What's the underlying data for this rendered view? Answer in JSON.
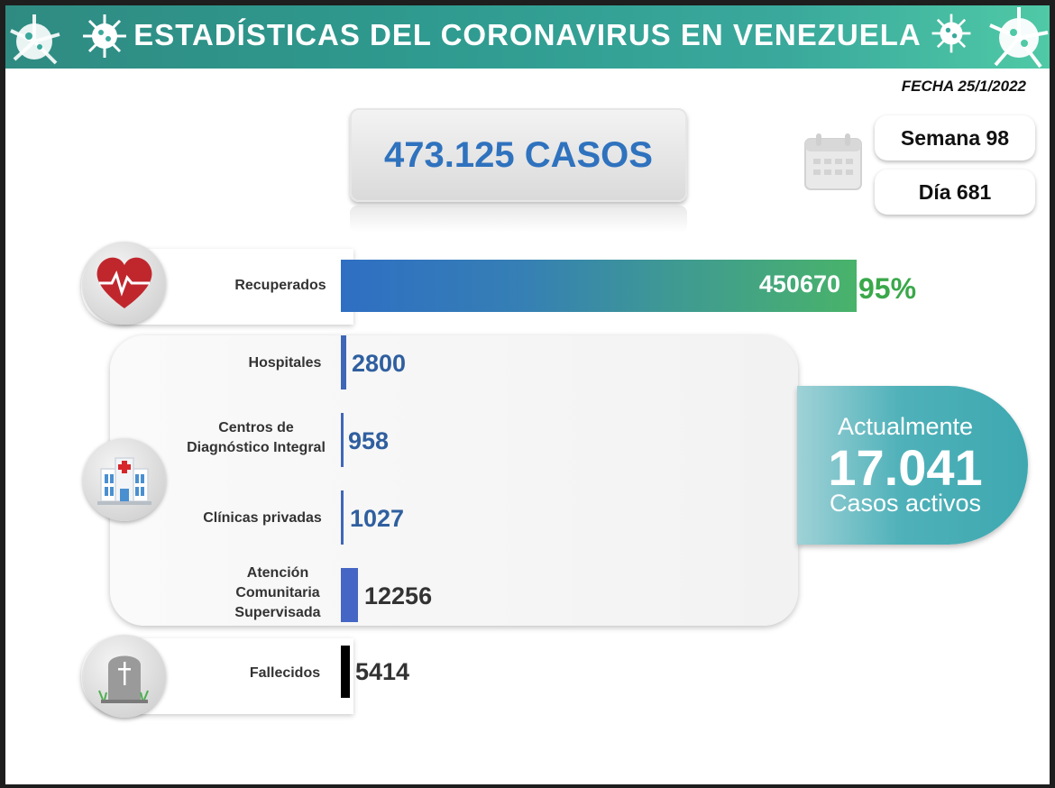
{
  "header": {
    "title": "ESTADÍSTICAS DEL CORONAVIRUS EN VENEZUELA",
    "date": "FECHA 25/1/2022"
  },
  "summary": {
    "total_cases": "473.125 CASOS",
    "week": "Semana 98",
    "day": "Día 681"
  },
  "recovered": {
    "label": "Recuperados",
    "value": "450670",
    "percent": "95%"
  },
  "active": {
    "line1": "Actualmente",
    "value": "17.041",
    "line3": "Casos activos"
  },
  "colors": {
    "banner": "#2f8b82",
    "recovered_start": "#2f6fc3",
    "recovered_end": "#49b36a",
    "percent": "#3aa84a",
    "active_box": "#4fb1b9",
    "value_blue": "#2f5f9f",
    "value_dark": "#333333"
  },
  "icons": {
    "recovered": "heart-pulse-icon",
    "hospital": "hospital-icon",
    "deaths": "tombstone-icon",
    "calendar": "calendar-icon"
  },
  "chart_data": {
    "type": "bar",
    "categories": [
      "Recuperados",
      "Hospitales",
      "Centros de Diagnóstico Integral",
      "Clínicas privadas",
      "Atención Comunitaria Supervisada",
      "Fallecidos"
    ],
    "values": [
      450670,
      2800,
      958,
      1027,
      12256,
      5414
    ],
    "value_labels": [
      "450670",
      "2800",
      "958",
      "1027",
      "12256",
      "5414"
    ],
    "bar_colors": [
      "#2f6fc3",
      "#3f67b8",
      "#3f67b8",
      "#3f67b8",
      "#4566c4",
      "#000000"
    ]
  }
}
